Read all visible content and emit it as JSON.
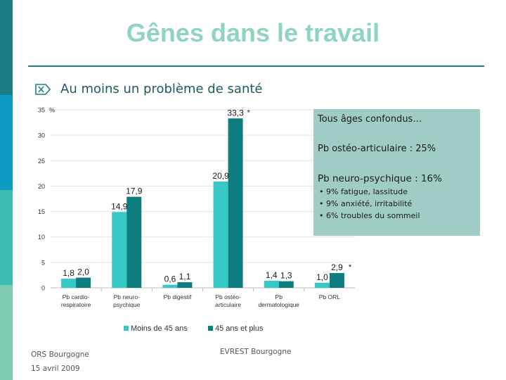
{
  "slide": {
    "title": "Gênes dans le travail",
    "bullet": "Au moins un problème de santé",
    "stripe_colors": [
      "#1b7d86",
      "#0e9bc3",
      "#3bbdb0",
      "#7ecbb4",
      "#9fccc4"
    ],
    "accent_color": "#1b7d86",
    "title_color": "#8fd3c6"
  },
  "info_box": {
    "intro": "Tous âges confondus…",
    "stat_osteo": "Pb ostéo-articulaire : 25%",
    "stat_neuro": "Pb neuro-psychique : 16%",
    "details": [
      "9% fatigue, lassitude",
      "9% anxiété, irritabilité",
      "6% troubles du sommeil"
    ],
    "background": "#9fccc4"
  },
  "footer": {
    "org": "ORS Bourgogne",
    "date": "15 avril 2009",
    "source": "EVREST Bourgogne"
  },
  "chart_data": {
    "type": "bar",
    "categories": [
      [
        "Pb cardio-",
        "respiratoire"
      ],
      [
        "Pb neuro-",
        "psychique"
      ],
      [
        "Pb digestif"
      ],
      [
        "Pb ostéo-",
        "articulaire"
      ],
      [
        "Pb",
        "dermatologique"
      ],
      [
        "Pb ORL"
      ]
    ],
    "series": [
      {
        "name": "Moins de 45 ans",
        "color": "#35c8c6",
        "values": [
          1.8,
          14.9,
          0.6,
          20.9,
          1.4,
          1.0
        ],
        "labels": [
          "1,8",
          "14,9",
          "0,6",
          "20,9",
          "1,4",
          "1,0"
        ]
      },
      {
        "name": "45 ans et plus",
        "color": "#0d7d80",
        "values": [
          2.0,
          17.9,
          1.1,
          33.3,
          1.3,
          2.9
        ],
        "labels": [
          "2,0",
          "17,9",
          "1,1",
          "33,3",
          "1,3",
          "2,9"
        ]
      }
    ],
    "significance_marks": [
      "",
      "",
      "",
      "*",
      "",
      "*"
    ],
    "y_ticks": [
      "0",
      "5",
      "10",
      "15",
      "20",
      "25",
      "30",
      "35"
    ],
    "y_unit": "%",
    "ylim": [
      0,
      35
    ],
    "grid": true,
    "legend_position": "bottom"
  }
}
